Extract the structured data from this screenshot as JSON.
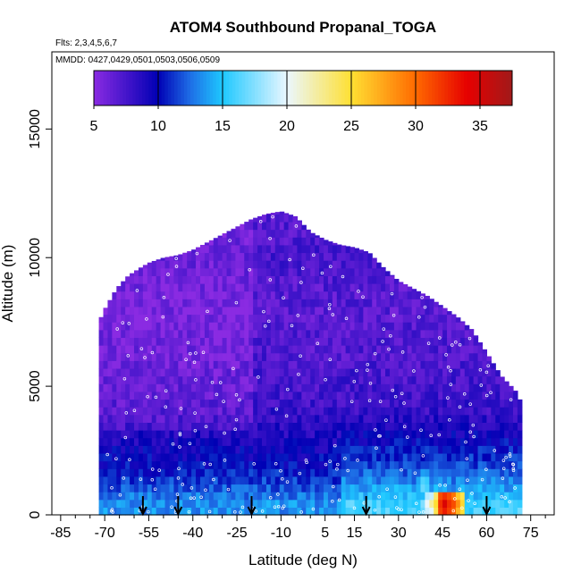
{
  "chart_data": {
    "type": "heatmap",
    "title": "ATOM4 Southbound Propanal_TOGA",
    "flights_note": "Flts: 2,3,4,5,6,7",
    "dates_note": "MMDD: 0427,0429,0501,0503,0506,0509",
    "xlabel": "Latitude (deg N)",
    "ylabel": "Altitude (m)",
    "xlim": [
      -88,
      83
    ],
    "ylim": [
      0,
      18000
    ],
    "x_ticks": [
      -85,
      -70,
      -55,
      -40,
      -25,
      -10,
      5,
      15,
      30,
      45,
      60,
      75
    ],
    "x_tick_labels": [
      "-85",
      "-70",
      "-55",
      "-40",
      "-25",
      "-10",
      "5",
      "15",
      "30",
      "45",
      "60",
      "75"
    ],
    "y_ticks": [
      0,
      5000,
      10000,
      15000
    ],
    "y_tick_labels": [
      "0",
      "5000",
      "10000",
      "15000"
    ],
    "colorbar": {
      "range": [
        5,
        37.5
      ],
      "ticks": [
        5,
        10,
        15,
        20,
        25,
        30,
        35
      ],
      "tick_labels": [
        "5",
        "10",
        "15",
        "20",
        "25",
        "30",
        "35"
      ],
      "stops": [
        {
          "v": 5,
          "color": "#8a2be2"
        },
        {
          "v": 10,
          "color": "#0000b4"
        },
        {
          "v": 12.5,
          "color": "#1e6ee6"
        },
        {
          "v": 15,
          "color": "#1ec8ff"
        },
        {
          "v": 20,
          "color": "#eaf7ff"
        },
        {
          "v": 25,
          "color": "#ffe033"
        },
        {
          "v": 30,
          "color": "#ff6a00"
        },
        {
          "v": 34,
          "color": "#e60000"
        },
        {
          "v": 37.5,
          "color": "#a01a1a"
        }
      ]
    },
    "field_envelope": {
      "lat": [
        -72,
        -70,
        -66,
        -62,
        -58,
        -55,
        -50,
        -45,
        -40,
        -35,
        -30,
        -25,
        -20,
        -15,
        -10,
        -5,
        0,
        5,
        10,
        15,
        20,
        25,
        30,
        35,
        40,
        45,
        50,
        55,
        60,
        65,
        70,
        72
      ],
      "top_alt": [
        7500,
        8000,
        8800,
        9300,
        9600,
        9800,
        10000,
        10100,
        10300,
        10600,
        10900,
        11200,
        11500,
        11700,
        11800,
        11600,
        11000,
        10700,
        10500,
        10400,
        10200,
        9600,
        9100,
        8800,
        8500,
        8100,
        7700,
        7200,
        6300,
        5400,
        4800,
        4300
      ]
    },
    "mean_profile": {
      "alt": [
        500,
        1000,
        1500,
        2000,
        2500,
        3000,
        3500,
        4000,
        5000,
        6000,
        7000,
        8000,
        9000,
        10000,
        11000
      ],
      "value": [
        13.5,
        12.0,
        11.0,
        10.0,
        9.6,
        9.0,
        8.6,
        8.0,
        7.5,
        7.2,
        7.0,
        6.8,
        7.0,
        7.5,
        7.0
      ]
    },
    "hotspots": [
      {
        "lat": 45,
        "alt": 250,
        "value": 35
      },
      {
        "lat": 47,
        "alt": 250,
        "value": 33
      },
      {
        "lat": 43,
        "alt": 250,
        "value": 27
      },
      {
        "lat": 40,
        "alt": 250,
        "value": 22
      },
      {
        "lat": 49,
        "alt": 250,
        "value": 29
      },
      {
        "lat": 38,
        "alt": 1000,
        "value": 18
      },
      {
        "lat": 28,
        "alt": 900,
        "value": 16
      }
    ],
    "arrow_markers_lat": [
      -57,
      -45,
      -20,
      19,
      60
    ]
  }
}
